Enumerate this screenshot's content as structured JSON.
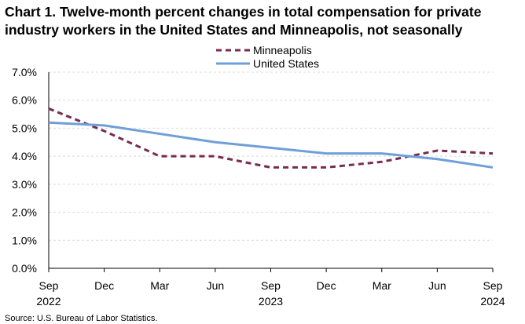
{
  "chart_data": {
    "type": "line",
    "title_lines": [
      "Chart 1. Twelve-month percent changes in total compensation for private",
      "industry workers in the United States and Minneapolis, not seasonally"
    ],
    "categories": [
      "Sep",
      "Dec",
      "Mar",
      "Jun",
      "Sep",
      "Dec",
      "Mar",
      "Jun",
      "Sep"
    ],
    "category_years": [
      "2022",
      "",
      "",
      "",
      "2023",
      "",
      "",
      "",
      "2024"
    ],
    "series": [
      {
        "name": "Minneapolis",
        "color": "#772d4c",
        "dash": "dashed",
        "values": [
          5.7,
          4.9,
          4.0,
          4.0,
          3.6,
          3.6,
          3.8,
          4.2,
          4.1
        ]
      },
      {
        "name": "United States",
        "color": "#6f9fd8",
        "dash": "solid",
        "values": [
          5.2,
          5.1,
          4.8,
          4.5,
          4.3,
          4.1,
          4.1,
          3.9,
          3.6
        ]
      }
    ],
    "y_ticks": [
      "0.0%",
      "1.0%",
      "2.0%",
      "3.0%",
      "4.0%",
      "5.0%",
      "6.0%",
      "7.0%"
    ],
    "ylim": [
      0,
      7
    ],
    "grid": true,
    "legend_position": "top-center",
    "xlabel": "",
    "ylabel": "",
    "source": "Source: U.S. Bureau of Labor Statistics."
  }
}
